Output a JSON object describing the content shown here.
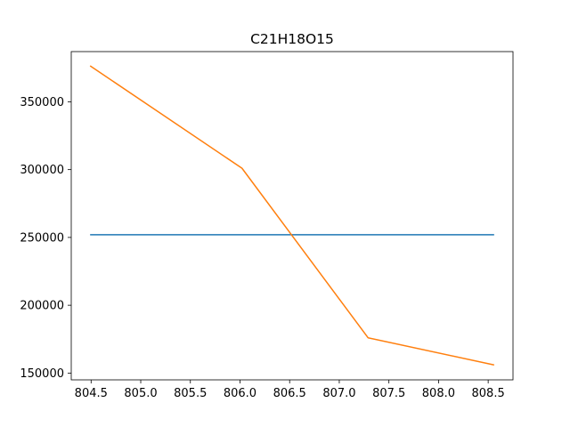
{
  "chart_data": {
    "type": "line",
    "title": "C21H18O15",
    "xlabel": "",
    "ylabel": "",
    "xlim": [
      804.3,
      808.75
    ],
    "ylim": [
      145000,
      387000
    ],
    "xticks": [
      804.5,
      805.0,
      805.5,
      806.0,
      806.5,
      807.0,
      807.5,
      808.0,
      808.5
    ],
    "xtick_labels": [
      "804.5",
      "805.0",
      "805.5",
      "806.0",
      "806.5",
      "807.0",
      "807.5",
      "808.0",
      "808.5"
    ],
    "yticks": [
      150000,
      200000,
      250000,
      300000,
      350000
    ],
    "ytick_labels": [
      "150000",
      "200000",
      "250000",
      "300000",
      "350000"
    ],
    "grid": false,
    "series": [
      {
        "color": "#1f77b4",
        "x": [
          804.49,
          808.56
        ],
        "y": [
          252000,
          252000
        ]
      },
      {
        "color": "#ff7f0e",
        "x": [
          804.49,
          806.02,
          807.29,
          808.56
        ],
        "y": [
          376500,
          301000,
          176000,
          156000
        ]
      }
    ]
  }
}
